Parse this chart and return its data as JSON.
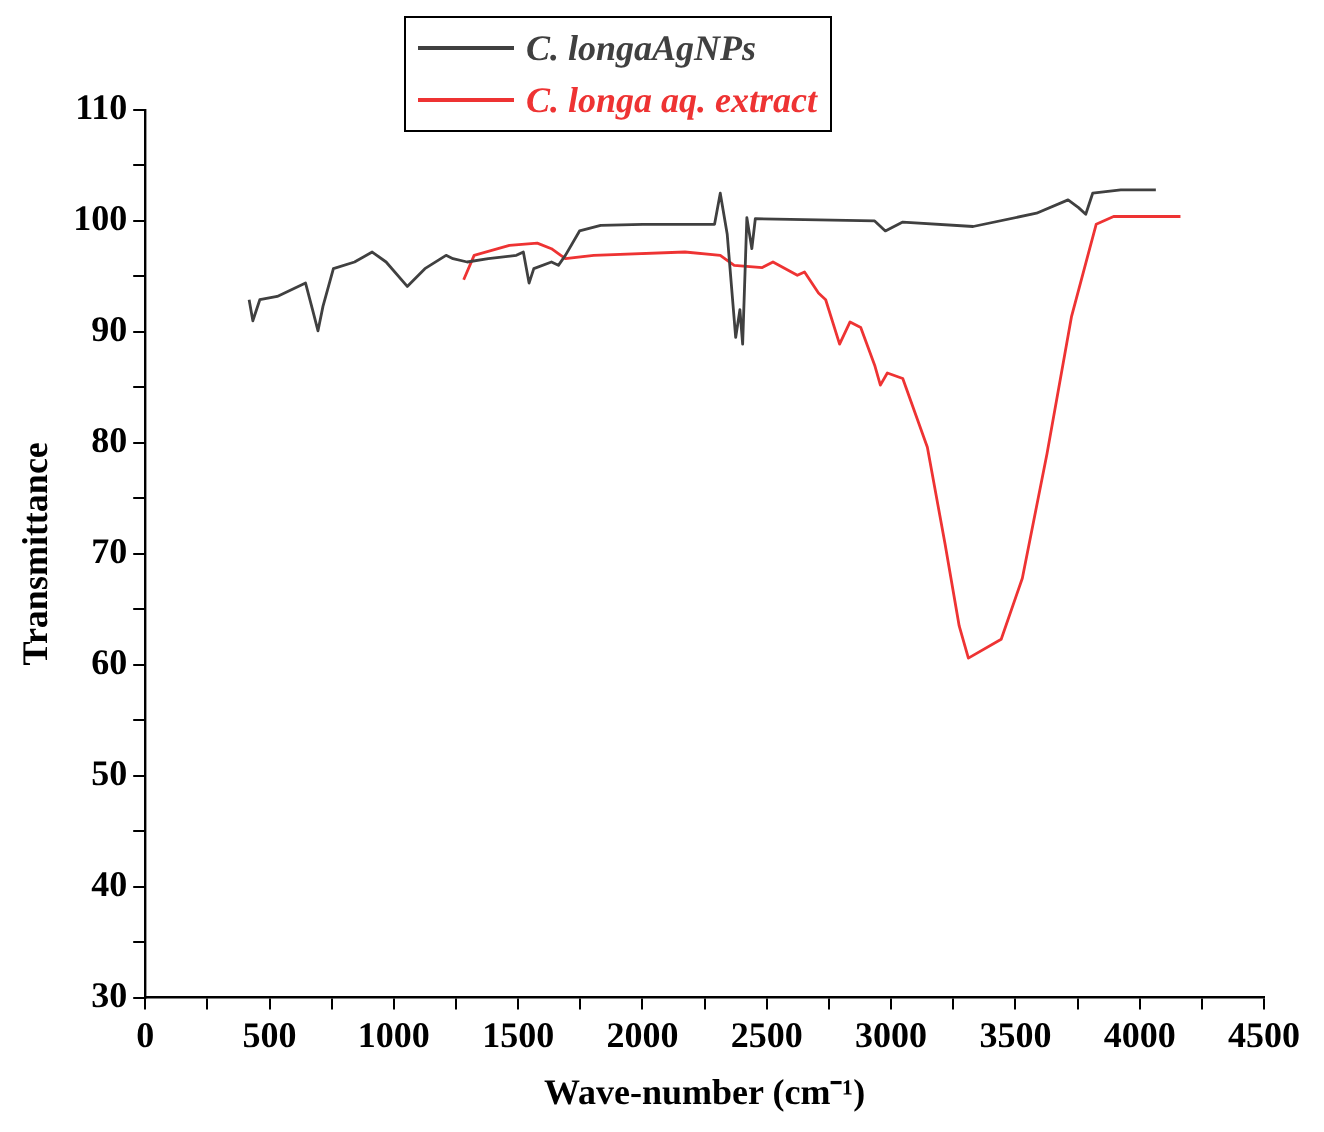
{
  "chart_data": {
    "type": "line",
    "xlabel": "Wave-number (cm⁻¹)",
    "ylabel": "Transmittance",
    "legend": "top",
    "grid": false,
    "marker": "none",
    "line_style": "solid",
    "xlim": [
      0,
      4500
    ],
    "ylim": [
      30,
      110
    ],
    "xticks": [
      0,
      {
        "value": 250,
        "label": null
      },
      500,
      {
        "value": 750,
        "label": null
      },
      1000,
      {
        "value": 1250,
        "label": null
      },
      1500,
      {
        "value": 1750,
        "label": null
      },
      2000,
      {
        "value": 2250,
        "label": null
      },
      2500,
      {
        "value": 2750,
        "label": null
      },
      3000,
      {
        "value": 3250,
        "label": null
      },
      3500,
      {
        "value": 3750,
        "label": null
      },
      4000,
      {
        "value": 4250,
        "label": null
      },
      4500
    ],
    "yticks": [
      30,
      {
        "value": 35,
        "label": null
      },
      40,
      {
        "value": 45,
        "label": null
      },
      50,
      {
        "value": 55,
        "label": null
      },
      60,
      {
        "value": 65,
        "label": null
      },
      70,
      {
        "value": 75,
        "label": null
      },
      80,
      {
        "value": 85,
        "label": null
      },
      90,
      {
        "value": 95,
        "label": null
      },
      100,
      {
        "value": 105,
        "label": null
      },
      110
    ],
    "series": [
      {
        "name": "C. longaAgNPs",
        "color": "#404040",
        "x": [
          418,
          433,
          461,
          531,
          645,
          673,
          695,
          715,
          757,
          842,
          913,
          969,
          1054,
          1125,
          1210,
          1238,
          1295,
          1380,
          1493,
          1521,
          1544,
          1563,
          1634,
          1662,
          1690,
          1747,
          1832,
          2001,
          2228,
          2290,
          2313,
          2341,
          2375,
          2392,
          2403,
          2420,
          2440,
          2454,
          2934,
          2977,
          3047,
          3330,
          3585,
          3712,
          3754,
          3783,
          3811,
          3924,
          4065
        ],
        "values": [
          92.9,
          91.0,
          92.9,
          93.2,
          94.4,
          92.0,
          90.1,
          92.3,
          95.7,
          96.3,
          97.2,
          96.3,
          94.1,
          95.7,
          96.9,
          96.6,
          96.3,
          96.6,
          96.9,
          97.2,
          94.4,
          95.7,
          96.3,
          96.0,
          96.9,
          99.1,
          99.6,
          99.7,
          99.7,
          99.7,
          102.5,
          98.8,
          89.5,
          92.0,
          88.9,
          100.3,
          97.5,
          100.2,
          100.0,
          99.1,
          99.9,
          99.5,
          100.7,
          101.9,
          101.2,
          100.6,
          102.5,
          102.8,
          102.8
        ]
      },
      {
        "name": "C. longa aq. extract",
        "color": "#ee3333",
        "x": [
          1281,
          1323,
          1465,
          1577,
          1634,
          1690,
          1804,
          2171,
          2313,
          2369,
          2482,
          2525,
          2623,
          2652,
          2708,
          2737,
          2793,
          2835,
          2878,
          2934,
          2957,
          2985,
          3047,
          3146,
          3217,
          3274,
          3311,
          3443,
          3528,
          3627,
          3726,
          3825,
          3895,
          4164
        ],
        "values": [
          94.7,
          96.9,
          97.8,
          98.0,
          97.5,
          96.6,
          96.9,
          97.2,
          96.9,
          96.0,
          95.8,
          96.3,
          95.1,
          95.4,
          93.5,
          92.9,
          88.9,
          90.9,
          90.4,
          87.0,
          85.2,
          86.3,
          85.8,
          79.6,
          70.9,
          63.5,
          60.6,
          62.3,
          67.8,
          79.0,
          91.4,
          99.7,
          100.4,
          100.4
        ]
      }
    ]
  }
}
